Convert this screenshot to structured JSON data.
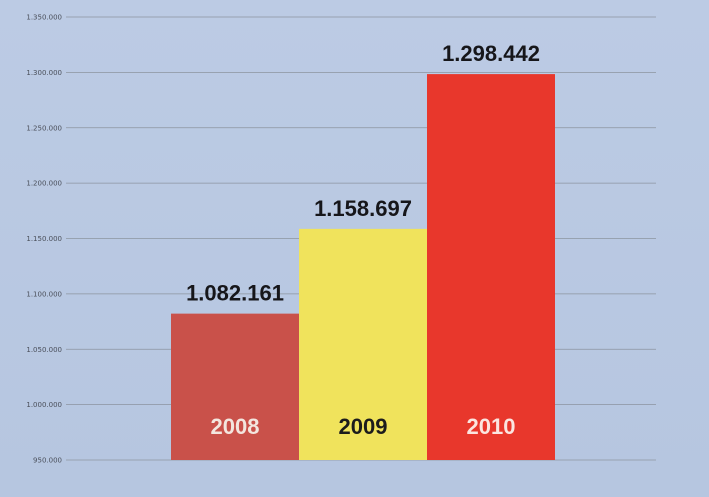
{
  "chart_data": {
    "type": "bar",
    "categories": [
      "2008",
      "2009",
      "2010"
    ],
    "values": [
      1082161,
      1158697,
      1298442
    ],
    "value_labels": [
      "1.082.161",
      "1.158.697",
      "1.298.442"
    ],
    "ylim": [
      950000,
      1350000
    ],
    "yticks": [
      950000,
      1000000,
      1050000,
      1100000,
      1150000,
      1200000,
      1250000,
      1300000,
      1350000
    ],
    "ytick_labels": [
      "950.000",
      "1.000.000",
      "1.050.000",
      "1.100.000",
      "1.150.000",
      "1.200.000",
      "1.250.000",
      "1.300.000",
      "1.350.000"
    ],
    "colors": [
      "#c9514a",
      "#f0e35c",
      "#e8372c"
    ],
    "category_label_colors": [
      "#f3e6df",
      "#1c1c1c",
      "#fbe5e0"
    ],
    "grid": true,
    "legend": "none",
    "title": "",
    "xlabel": "",
    "ylabel": ""
  }
}
